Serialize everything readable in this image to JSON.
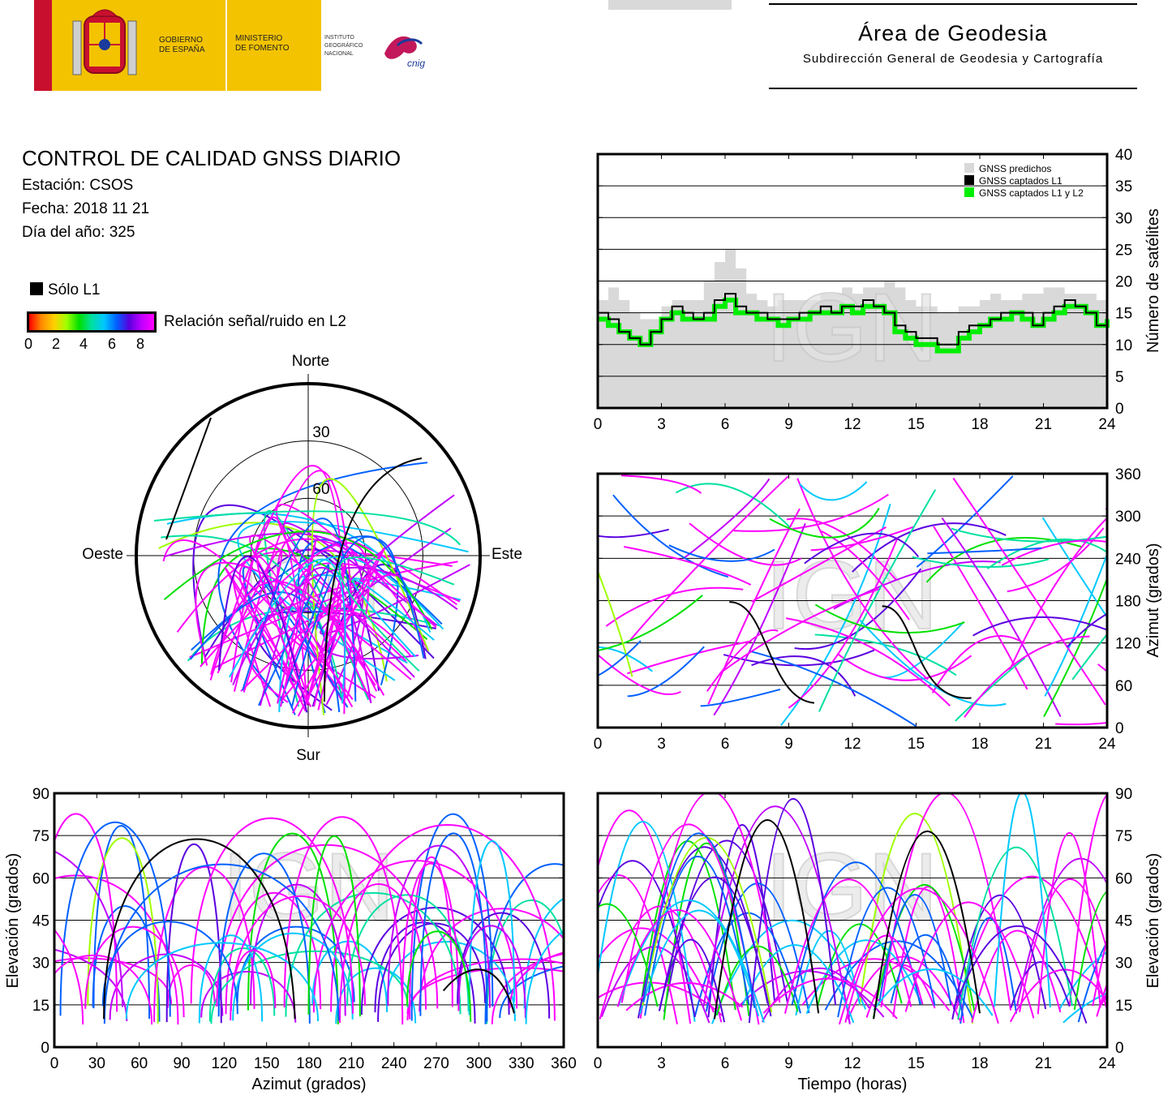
{
  "header": {
    "gobierno_line1": "GOBIERNO",
    "gobierno_line2": "DE ESPAÑA",
    "ministerio_line1": "MINISTERIO",
    "ministerio_line2": "DE FOMENTO",
    "instituto_line1": "INSTITUTO",
    "instituto_line2": "GEOGRÁFICO",
    "instituto_line3": "NACIONAL",
    "cnig": "cnig",
    "area_title": "Área de Geodesia",
    "area_subtitle": "Subdirección General de Geodesia y Cartografía"
  },
  "info": {
    "title": "CONTROL DE CALIDAD GNSS DIARIO",
    "station": "Estación: CSOS",
    "date": "Fecha: 2018 11 21",
    "doy": "Día del año: 325"
  },
  "legend": {
    "l1_only": "Sólo L1",
    "snr_label": "Relación señal/ruido en L2",
    "snr_ticks": [
      "0",
      "2",
      "4",
      "6",
      "8"
    ]
  },
  "colors": {
    "l1_only": "#000000",
    "predicted": "#d9d9d9",
    "captured_l1": "#000000",
    "captured_l1_l2": "#00ee00",
    "snr_scale": [
      "#ff0000",
      "#ff8c00",
      "#ffd000",
      "#a0ff00",
      "#00e000",
      "#00e0a0",
      "#00c8ff",
      "#0060ff",
      "#5a00e0",
      "#c000ff",
      "#ff00ff"
    ]
  },
  "watermark": "IGN",
  "chart_data": [
    {
      "type": "area",
      "id": "satellites",
      "ylabel": "Número de satélites",
      "x_ticks": [
        "0",
        "3",
        "6",
        "9",
        "12",
        "15",
        "18",
        "21",
        "24"
      ],
      "y_ticks": [
        "0",
        "5",
        "10",
        "15",
        "20",
        "25",
        "30",
        "35",
        "40"
      ],
      "xlim": [
        0,
        24
      ],
      "ylim": [
        0,
        40
      ],
      "grid": "horizontal",
      "legend": [
        "GNSS predichos",
        "GNSS captados L1",
        "GNSS captados L1 y L2"
      ],
      "legend_position": "top-right",
      "x": [
        0,
        0.5,
        1,
        1.5,
        2,
        2.5,
        3,
        3.5,
        4,
        4.5,
        5,
        5.5,
        6,
        6.5,
        7,
        7.5,
        8,
        8.5,
        9,
        9.5,
        10,
        10.5,
        11,
        11.5,
        12,
        12.5,
        13,
        13.5,
        14,
        14.5,
        15,
        15.5,
        16,
        16.5,
        17,
        17.5,
        18,
        18.5,
        19,
        19.5,
        20,
        20.5,
        21,
        21.5,
        22,
        22.5,
        23,
        23.5,
        24
      ],
      "series": [
        {
          "name": "GNSS predichos",
          "values": [
            17,
            19,
            17,
            15,
            14,
            14,
            16,
            17,
            17,
            17,
            20,
            23,
            25,
            22,
            18,
            17,
            16,
            17,
            17,
            17,
            17,
            18,
            18,
            19,
            18,
            19,
            19,
            20,
            19,
            17,
            16,
            16,
            15,
            15,
            16,
            16,
            17,
            18,
            17,
            17,
            18,
            18,
            19,
            19,
            18,
            18,
            18,
            17,
            16
          ]
        },
        {
          "name": "GNSS captados L1",
          "values": [
            15,
            14,
            12,
            11,
            10,
            12,
            14,
            16,
            15,
            14,
            15,
            17,
            18,
            16,
            15,
            15,
            14,
            14,
            14,
            15,
            15,
            16,
            15,
            16,
            16,
            17,
            16,
            15,
            13,
            12,
            11,
            11,
            10,
            10,
            12,
            13,
            13,
            14,
            15,
            15,
            15,
            13,
            15,
            16,
            17,
            16,
            15,
            13,
            14
          ]
        },
        {
          "name": "GNSS captados L1 y L2",
          "values": [
            14,
            13,
            12,
            11,
            10,
            12,
            14,
            15,
            14,
            14,
            14,
            16,
            17,
            15,
            15,
            14,
            14,
            13,
            14,
            14,
            15,
            15,
            15,
            16,
            15,
            16,
            16,
            15,
            12,
            11,
            10,
            10,
            9,
            9,
            11,
            12,
            13,
            14,
            14,
            15,
            14,
            13,
            14,
            15,
            16,
            16,
            15,
            13,
            14
          ]
        }
      ]
    },
    {
      "type": "scatter",
      "id": "azimuth_time",
      "ylabel": "Azimut (grados)",
      "x_ticks": [
        "0",
        "3",
        "6",
        "9",
        "12",
        "15",
        "18",
        "21",
        "24"
      ],
      "y_ticks": [
        "0",
        "60",
        "120",
        "180",
        "240",
        "300",
        "360"
      ],
      "xlim": [
        0,
        24
      ],
      "ylim": [
        0,
        360
      ],
      "grid": "horizontal"
    },
    {
      "type": "scatter",
      "id": "skyplot",
      "labels": {
        "north": "Norte",
        "south": "Sur",
        "west": "Oeste",
        "east": "Este"
      },
      "ring_labels": [
        "30",
        "60"
      ]
    },
    {
      "type": "scatter",
      "id": "elevation_azimuth",
      "xlabel": "Azimut (grados)",
      "ylabel": "Elevación (grados)",
      "x_ticks": [
        "0",
        "30",
        "60",
        "90",
        "120",
        "150",
        "180",
        "210",
        "240",
        "270",
        "300",
        "330",
        "360"
      ],
      "y_ticks": [
        "0",
        "15",
        "30",
        "45",
        "60",
        "75",
        "90"
      ],
      "xlim": [
        0,
        360
      ],
      "ylim": [
        0,
        90
      ],
      "grid": "horizontal"
    },
    {
      "type": "scatter",
      "id": "elevation_time",
      "xlabel": "Tiempo (horas)",
      "ylabel": "Elevación (grados)",
      "x_ticks": [
        "0",
        "3",
        "6",
        "9",
        "12",
        "15",
        "18",
        "21",
        "24"
      ],
      "y_ticks": [
        "0",
        "15",
        "30",
        "45",
        "60",
        "75",
        "90"
      ],
      "xlim": [
        0,
        24
      ],
      "ylim": [
        0,
        90
      ],
      "grid": "horizontal"
    }
  ]
}
